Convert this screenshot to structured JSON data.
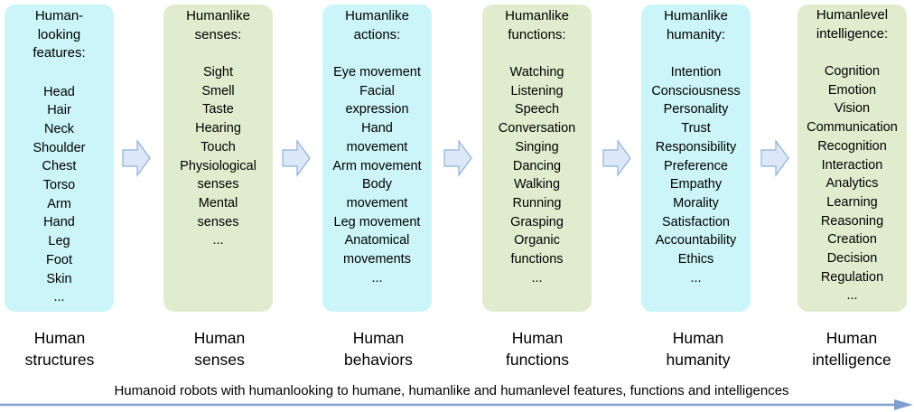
{
  "columns": [
    {
      "title_lines": [
        "Human-",
        "looking",
        "features:"
      ],
      "items": [
        "Head",
        "Hair",
        "Neck",
        "Shoulder",
        "Chest",
        "Torso",
        "Arm",
        "Hand",
        "Leg",
        "Foot",
        "Skin",
        "..."
      ],
      "caption_lines": [
        "Human",
        "structures"
      ]
    },
    {
      "title_lines": [
        "Humanlike",
        "senses:"
      ],
      "items": [
        "Sight",
        "Smell",
        "Taste",
        "Hearing",
        "Touch",
        "Physiological",
        "senses",
        "Mental",
        "senses",
        "..."
      ],
      "caption_lines": [
        "Human",
        "senses"
      ]
    },
    {
      "title_lines": [
        "Humanlike",
        "actions:"
      ],
      "items": [
        "Eye movement",
        "Facial",
        "expression",
        "Hand",
        "movement",
        "Arm movement",
        "Body",
        "movement",
        "Leg movement",
        "Anatomical",
        "movements",
        "..."
      ],
      "caption_lines": [
        "Human",
        "behaviors"
      ]
    },
    {
      "title_lines": [
        "Humanlike",
        "functions:"
      ],
      "items": [
        "Watching",
        "Listening",
        "Speech",
        "Conversation",
        "Singing",
        "Dancing",
        "Walking",
        "Running",
        "Grasping",
        "Organic",
        "functions",
        "..."
      ],
      "caption_lines": [
        "Human",
        "functions"
      ]
    },
    {
      "title_lines": [
        "Humanlike",
        "humanity:"
      ],
      "items": [
        "Intention",
        "Consciousness",
        "Personality",
        "Trust",
        "Responsibility",
        "Preference",
        "Empathy",
        "Morality",
        "Satisfaction",
        "Accountability",
        "Ethics",
        "..."
      ],
      "caption_lines": [
        "Human",
        "humanity"
      ]
    },
    {
      "title_lines": [
        "Humanlevel",
        "intelligence:"
      ],
      "items": [
        "Cognition",
        "Emotion",
        "Vision",
        "Communication",
        "Recognition",
        "Interaction",
        "Analytics",
        "Learning",
        "Reasoning",
        "Creation",
        "Decision",
        "Regulation",
        "..."
      ],
      "caption_lines": [
        "Human",
        "intelligence"
      ]
    }
  ],
  "footer": "Humanoid robots with humanlooking to humane, humanlike and humanlevel features, functions and intelligences",
  "colors": {
    "cyan_box": "#cbf5f8",
    "green_box": "#e1eccf",
    "arrow_fill": "#dce8f8",
    "arrow_stroke": "#8fb0d8",
    "bottom_arrow": "#7f9fcf"
  }
}
